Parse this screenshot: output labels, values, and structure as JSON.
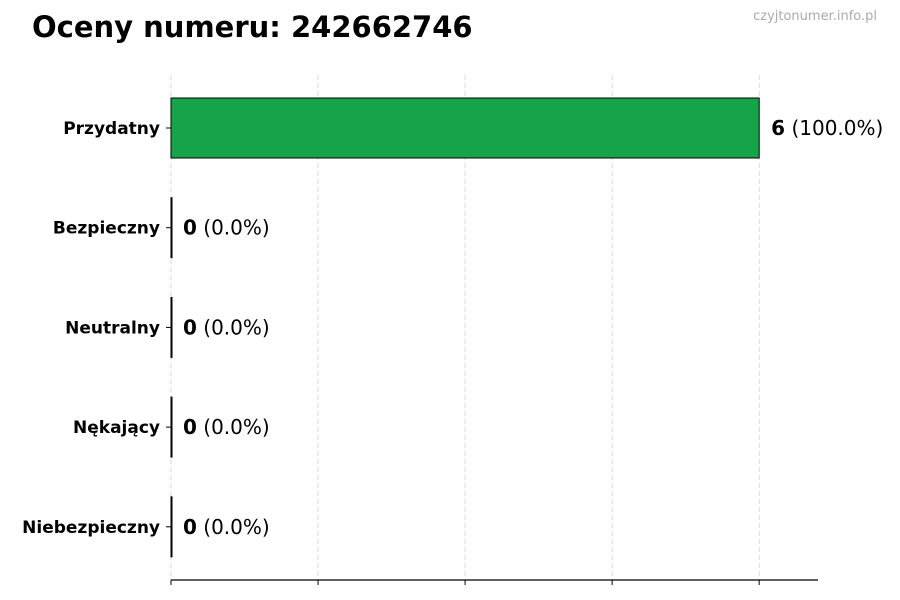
{
  "header": {
    "title": "Oceny numeru: 242662746",
    "watermark": "czyjtonumer.info.pl"
  },
  "chart_data": {
    "type": "bar",
    "orientation": "horizontal",
    "title": "Oceny numeru: 242662746",
    "categories": [
      "Przydatny",
      "Bezpieczny",
      "Neutralny",
      "Nękający",
      "Niebezpieczny"
    ],
    "values": [
      6,
      0,
      0,
      0,
      0
    ],
    "value_labels": [
      {
        "count": "6",
        "pct": " (100.0%)"
      },
      {
        "count": "0",
        "pct": " (0.0%)"
      },
      {
        "count": "0",
        "pct": " (0.0%)"
      },
      {
        "count": "0",
        "pct": " (0.0%)"
      },
      {
        "count": "0",
        "pct": " (0.0%)"
      }
    ],
    "xlim": [
      0,
      6.6
    ],
    "xticks": [
      0,
      1.5,
      3,
      4.5,
      6
    ],
    "xtick_labels_shown": false,
    "grid": "vertical dashed",
    "bar_color": "#16a34a",
    "bar_edge_color": "#000000"
  }
}
